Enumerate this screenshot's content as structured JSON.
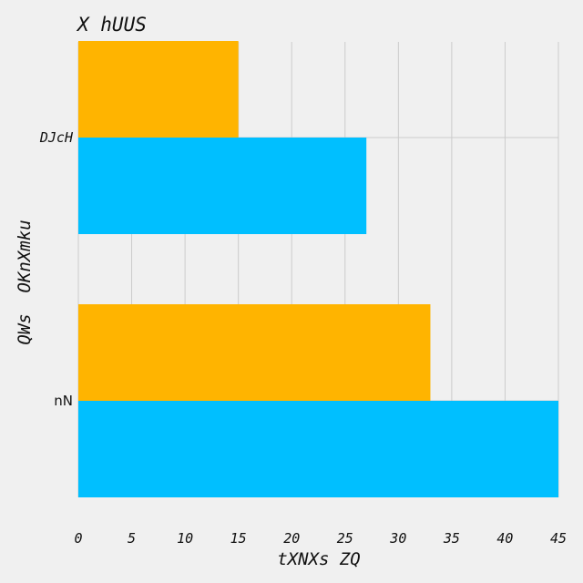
{
  "chart_data": {
    "type": "bar",
    "orientation": "horizontal",
    "title": "X hUUS",
    "xlabel": "tXNXs ZQ",
    "ylabel": "QWs  OKnXmku",
    "categories": [
      "DJcH",
      "nN"
    ],
    "series": [
      {
        "values": [
          27,
          45
        ],
        "color": "#00bfff"
      },
      {
        "values": [
          15,
          33
        ],
        "color": "#ffb400"
      }
    ],
    "xlim": [
      0,
      45
    ],
    "xticks": [
      0,
      5,
      10,
      15,
      20,
      25,
      30,
      35,
      40,
      45
    ],
    "grid": true,
    "legend": false
  }
}
